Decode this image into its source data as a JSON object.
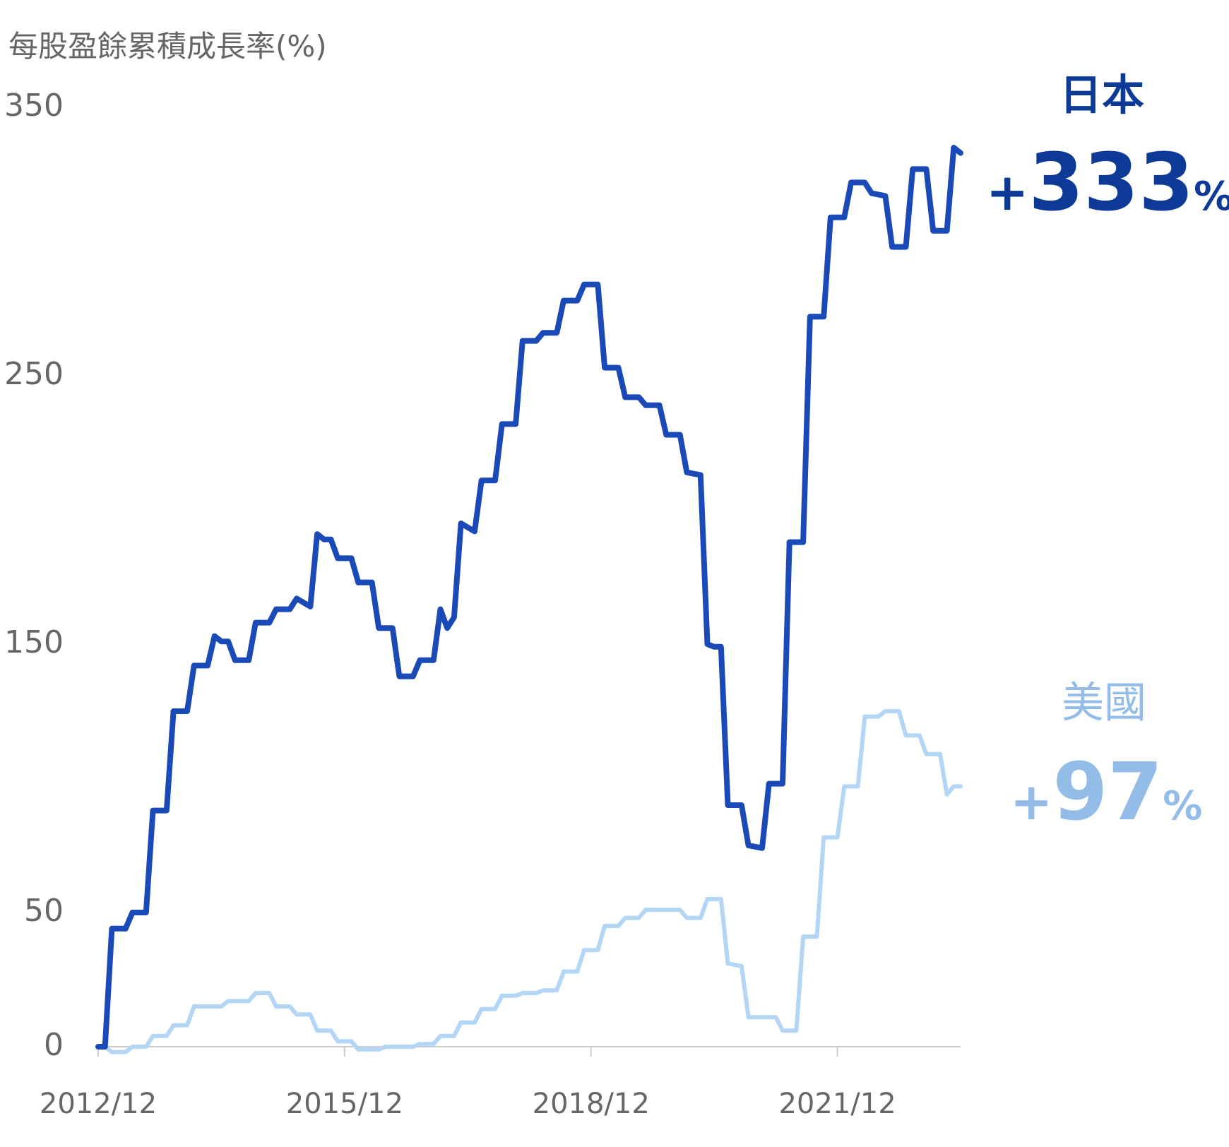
{
  "chart_data": {
    "type": "line",
    "title": "每股盈餘累積成長率(%)",
    "xlim": [
      "2012/12",
      "2023/06"
    ],
    "xticks": [
      "2012/12",
      "2015/12",
      "2018/12",
      "2021/12"
    ],
    "ylim": [
      0,
      350
    ],
    "yticks": [
      0,
      50,
      150,
      250,
      350
    ],
    "grid": false,
    "series": [
      {
        "name": "日本",
        "color": "#1a49b8",
        "label_color": "#0d3a96",
        "end_label": "+333%",
        "x": [
          "2012/12",
          "2013/01",
          "2013/02",
          "2013/04",
          "2013/05",
          "2013/07",
          "2013/08",
          "2013/10",
          "2013/11",
          "2014/01",
          "2014/02",
          "2014/04",
          "2014/05",
          "2014/06",
          "2014/07",
          "2014/08",
          "2014/10",
          "2014/11",
          "2015/01",
          "2015/02",
          "2015/04",
          "2015/05",
          "2015/07",
          "2015/08",
          "2015/09",
          "2015/10",
          "2015/11",
          "2016/01",
          "2016/02",
          "2016/04",
          "2016/05",
          "2016/07",
          "2016/08",
          "2016/10",
          "2016/11",
          "2017/01",
          "2017/02",
          "2017/03",
          "2017/04",
          "2017/05",
          "2017/07",
          "2017/08",
          "2017/10",
          "2017/11",
          "2018/01",
          "2018/02",
          "2018/04",
          "2018/05",
          "2018/07",
          "2018/08",
          "2018/10",
          "2018/11",
          "2019/01",
          "2019/02",
          "2019/04",
          "2019/05",
          "2019/07",
          "2019/08",
          "2019/10",
          "2019/11",
          "2020/01",
          "2020/02",
          "2020/04",
          "2020/05",
          "2020/06",
          "2020/07",
          "2020/08",
          "2020/10",
          "2020/11",
          "2021/01",
          "2021/02",
          "2021/04",
          "2021/05",
          "2021/07",
          "2021/08",
          "2021/10",
          "2021/11",
          "2022/01",
          "2022/02",
          "2022/04",
          "2022/05",
          "2022/07",
          "2022/08",
          "2022/10",
          "2022/11",
          "2023/01",
          "2023/02",
          "2023/04",
          "2023/05",
          "2023/06"
        ],
        "values": [
          0,
          0,
          44,
          44,
          50,
          50,
          88,
          88,
          125,
          125,
          142,
          142,
          153,
          151,
          151,
          144,
          144,
          158,
          158,
          163,
          163,
          167,
          164,
          191,
          189,
          189,
          182,
          182,
          173,
          173,
          156,
          156,
          138,
          138,
          144,
          144,
          163,
          156,
          160,
          195,
          192,
          211,
          211,
          232,
          232,
          263,
          263,
          266,
          266,
          278,
          278,
          284,
          284,
          253,
          253,
          242,
          242,
          239,
          239,
          228,
          228,
          214,
          213,
          150,
          149,
          149,
          90,
          90,
          75,
          74,
          98,
          98,
          188,
          188,
          272,
          272,
          309,
          309,
          322,
          322,
          318,
          317,
          298,
          298,
          327,
          327,
          304,
          304,
          335,
          333
        ]
      },
      {
        "name": "美國",
        "color": "#b3d6f7",
        "label_color": "#93bce8",
        "end_label": "+97%",
        "x": [
          "2012/12",
          "2013/01",
          "2013/02",
          "2013/04",
          "2013/05",
          "2013/07",
          "2013/08",
          "2013/10",
          "2013/11",
          "2014/01",
          "2014/02",
          "2014/04",
          "2014/06",
          "2014/07",
          "2014/10",
          "2014/11",
          "2015/01",
          "2015/02",
          "2015/04",
          "2015/05",
          "2015/07",
          "2015/08",
          "2015/10",
          "2015/11",
          "2016/01",
          "2016/02",
          "2016/05",
          "2016/06",
          "2016/10",
          "2016/11",
          "2017/01",
          "2017/02",
          "2017/04",
          "2017/05",
          "2017/07",
          "2017/08",
          "2017/10",
          "2017/11",
          "2018/01",
          "2018/02",
          "2018/04",
          "2018/05",
          "2018/07",
          "2018/08",
          "2018/10",
          "2018/11",
          "2019/01",
          "2019/02",
          "2019/04",
          "2019/05",
          "2019/07",
          "2019/08",
          "2019/10",
          "2019/11",
          "2020/01",
          "2020/02",
          "2020/04",
          "2020/05",
          "2020/07",
          "2020/08",
          "2020/10",
          "2020/11",
          "2021/03",
          "2021/04",
          "2021/06",
          "2021/07",
          "2021/09",
          "2021/10",
          "2021/12",
          "2022/01",
          "2022/03",
          "2022/04",
          "2022/06",
          "2022/07",
          "2022/09",
          "2022/10",
          "2022/12",
          "2023/01",
          "2023/03",
          "2023/04",
          "2023/05",
          "2023/06"
        ],
        "values": [
          0,
          0,
          -2,
          -2,
          0,
          0,
          4,
          4,
          8,
          8,
          15,
          15,
          15,
          17,
          17,
          20,
          20,
          15,
          15,
          12,
          12,
          6,
          6,
          2,
          2,
          -1,
          -1,
          0,
          0,
          1,
          1,
          4,
          4,
          9,
          9,
          14,
          14,
          19,
          19,
          20,
          20,
          21,
          21,
          28,
          28,
          36,
          36,
          45,
          45,
          48,
          48,
          51,
          51,
          51,
          51,
          48,
          48,
          55,
          55,
          31,
          30,
          11,
          11,
          6,
          6,
          41,
          41,
          78,
          78,
          97,
          97,
          123,
          123,
          125,
          125,
          116,
          116,
          109,
          109,
          94,
          97,
          97
        ]
      }
    ]
  }
}
